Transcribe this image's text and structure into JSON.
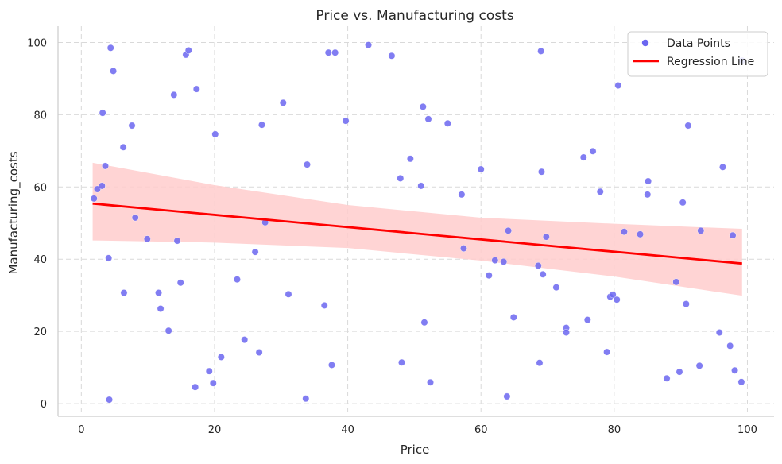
{
  "chart_data": {
    "type": "scatter",
    "title": "Price vs. Manufacturing costs",
    "xlabel": "Price",
    "ylabel": "Manufacturing_costs",
    "xlim": [
      -3.5,
      104
    ],
    "ylim": [
      -3.5,
      104.5
    ],
    "xticks": [
      0,
      20,
      40,
      60,
      80,
      100
    ],
    "yticks": [
      0,
      20,
      40,
      60,
      80,
      100
    ],
    "grid": true,
    "legend_position": "top-right",
    "colors": {
      "points": "#6b66f0",
      "line": "#ff0000",
      "band": "#ffcccc"
    },
    "series": [
      {
        "name": "Data Points",
        "kind": "scatter",
        "points": [
          [
            1.9,
            56.8
          ],
          [
            2.4,
            59.4
          ],
          [
            3.1,
            60.3
          ],
          [
            3.2,
            80.5
          ],
          [
            3.6,
            65.8
          ],
          [
            4.1,
            40.3
          ],
          [
            4.2,
            1.1
          ],
          [
            4.4,
            98.5
          ],
          [
            4.8,
            92.1
          ],
          [
            6.3,
            71.0
          ],
          [
            6.4,
            30.7
          ],
          [
            7.6,
            77.0
          ],
          [
            8.1,
            51.5
          ],
          [
            9.9,
            45.6
          ],
          [
            11.6,
            30.7
          ],
          [
            11.9,
            26.3
          ],
          [
            13.1,
            20.2
          ],
          [
            13.9,
            85.5
          ],
          [
            14.4,
            45.1
          ],
          [
            14.9,
            33.5
          ],
          [
            15.7,
            96.6
          ],
          [
            16.1,
            97.8
          ],
          [
            17.1,
            4.6
          ],
          [
            17.3,
            87.1
          ],
          [
            19.2,
            9.0
          ],
          [
            19.8,
            5.7
          ],
          [
            20.1,
            74.6
          ],
          [
            21.0,
            12.9
          ],
          [
            23.4,
            34.4
          ],
          [
            24.5,
            17.7
          ],
          [
            26.1,
            42.0
          ],
          [
            26.7,
            14.2
          ],
          [
            27.1,
            77.2
          ],
          [
            27.6,
            50.2
          ],
          [
            30.3,
            83.3
          ],
          [
            31.1,
            30.3
          ],
          [
            33.7,
            1.4
          ],
          [
            33.9,
            66.2
          ],
          [
            36.5,
            27.2
          ],
          [
            37.1,
            97.2
          ],
          [
            37.6,
            10.7
          ],
          [
            38.1,
            97.2
          ],
          [
            39.7,
            78.3
          ],
          [
            43.1,
            99.3
          ],
          [
            46.6,
            96.3
          ],
          [
            47.9,
            62.4
          ],
          [
            48.1,
            11.4
          ],
          [
            49.4,
            67.8
          ],
          [
            51.0,
            60.3
          ],
          [
            51.3,
            82.2
          ],
          [
            51.5,
            22.5
          ],
          [
            52.1,
            78.8
          ],
          [
            52.4,
            5.9
          ],
          [
            55.0,
            77.6
          ],
          [
            57.1,
            57.9
          ],
          [
            57.4,
            43.0
          ],
          [
            60.0,
            64.9
          ],
          [
            61.2,
            35.5
          ],
          [
            62.1,
            39.7
          ],
          [
            63.4,
            39.3
          ],
          [
            63.9,
            2.0
          ],
          [
            64.1,
            47.9
          ],
          [
            64.9,
            23.9
          ],
          [
            68.6,
            38.2
          ],
          [
            68.8,
            11.3
          ],
          [
            69.1,
            64.2
          ],
          [
            69.3,
            35.8
          ],
          [
            69.8,
            46.2
          ],
          [
            71.3,
            32.2
          ],
          [
            72.8,
            21.0
          ],
          [
            72.8,
            19.7
          ],
          [
            69.0,
            97.6
          ],
          [
            75.4,
            68.2
          ],
          [
            76.0,
            23.2
          ],
          [
            76.8,
            69.9
          ],
          [
            77.9,
            58.7
          ],
          [
            78.9,
            14.3
          ],
          [
            79.4,
            29.6
          ],
          [
            79.8,
            30.2
          ],
          [
            80.4,
            28.8
          ],
          [
            80.6,
            88.1
          ],
          [
            81.5,
            47.6
          ],
          [
            83.9,
            46.9
          ],
          [
            85.0,
            57.9
          ],
          [
            85.1,
            61.6
          ],
          [
            87.9,
            7.0
          ],
          [
            89.3,
            33.7
          ],
          [
            89.8,
            8.8
          ],
          [
            90.3,
            55.7
          ],
          [
            90.8,
            27.6
          ],
          [
            91.1,
            77.0
          ],
          [
            92.8,
            10.5
          ],
          [
            93.0,
            47.9
          ],
          [
            95.8,
            19.7
          ],
          [
            96.3,
            65.5
          ],
          [
            97.4,
            16.0
          ],
          [
            97.8,
            46.6
          ],
          [
            98.1,
            9.2
          ],
          [
            99.1,
            6.0
          ],
          [
            99.2,
            95.0
          ]
        ]
      },
      {
        "name": "Regression Line",
        "kind": "line",
        "x": [
          1.7,
          99.2
        ],
        "y": [
          55.4,
          38.8
        ],
        "ci_upper": [
          [
            1.7,
            66.7
          ],
          [
            20,
            60.5
          ],
          [
            40,
            55.0
          ],
          [
            60,
            51.5
          ],
          [
            80,
            49.8
          ],
          [
            99.2,
            48.4
          ]
        ],
        "ci_lower": [
          [
            1.7,
            45.2
          ],
          [
            20,
            44.6
          ],
          [
            40,
            43.1
          ],
          [
            60,
            39.6
          ],
          [
            80,
            35.2
          ],
          [
            99.2,
            29.9
          ]
        ]
      }
    ]
  }
}
